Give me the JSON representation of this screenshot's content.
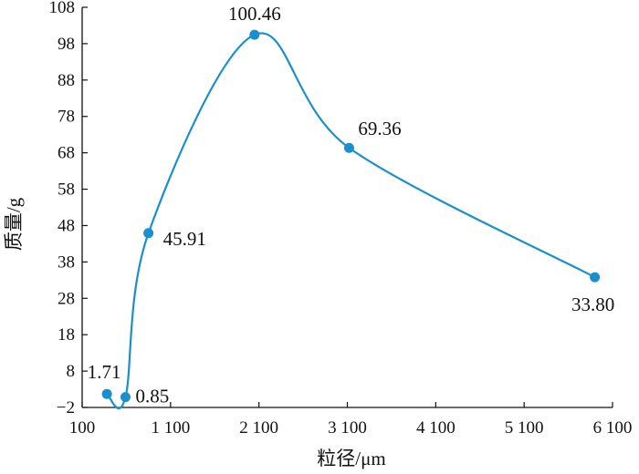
{
  "chart_data": {
    "type": "line",
    "xlabel": "粒径/μm",
    "ylabel": "质量/g",
    "x_ticks": [
      "100",
      "1 100",
      "2 100",
      "3 100",
      "4 100",
      "5 100",
      "6 100"
    ],
    "x_tick_values": [
      100,
      1100,
      2100,
      3100,
      4100,
      5100,
      6100
    ],
    "y_ticks": [
      "−2",
      "8",
      "18",
      "28",
      "38",
      "48",
      "58",
      "68",
      "78",
      "88",
      "98",
      "108"
    ],
    "y_tick_values": [
      -2,
      8,
      18,
      28,
      38,
      48,
      58,
      68,
      78,
      88,
      98,
      108
    ],
    "xlim": [
      100,
      6100
    ],
    "ylim": [
      -2,
      108
    ],
    "grid": false,
    "series": [
      {
        "x": [
          380,
          590,
          850,
          2050,
          3120,
          5900
        ],
        "y": [
          1.71,
          0.85,
          45.91,
          100.46,
          69.36,
          33.8
        ],
        "labels": [
          "1.71",
          "0.85",
          "45.91",
          "100.46",
          "69.36",
          "33.80"
        ],
        "color": "#1b8fcc"
      }
    ]
  }
}
